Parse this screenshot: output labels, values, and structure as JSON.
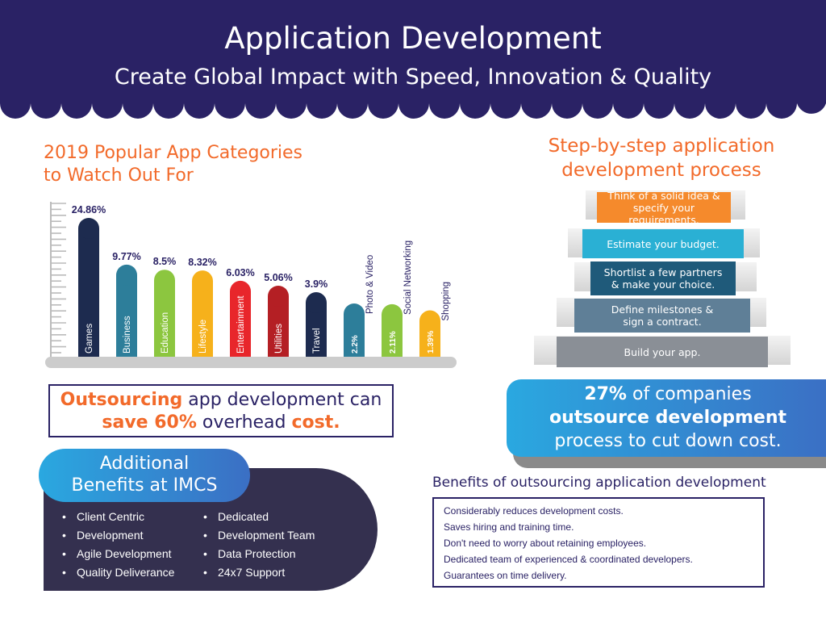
{
  "header": {
    "title": "Application Development",
    "subtitle": "Create Global Impact with Speed, Innovation & Quality",
    "bg_color": "#2a2265"
  },
  "chart_section": {
    "title_line1": "2019 Popular App Categories",
    "title_line2": "to Watch Out For"
  },
  "chart_data": {
    "type": "bar",
    "categories": [
      "Games",
      "Business",
      "Education",
      "Lifestyle",
      "Entertainment",
      "Utilities",
      "Travel",
      "Photo & Video",
      "Social Networking",
      "Shopping"
    ],
    "values": [
      24.86,
      9.77,
      8.5,
      8.32,
      6.03,
      5.06,
      3.9,
      2.2,
      2.11,
      1.39
    ],
    "value_labels": [
      "24.86%",
      "9.77%",
      "8.5%",
      "8.32%",
      "6.03%",
      "5.06%",
      "3.9%",
      "2.2%",
      "2.11%",
      "1.39%"
    ],
    "colors": [
      "#1d2b4f",
      "#2d7e9a",
      "#8cc63f",
      "#f6b11b",
      "#e8262b",
      "#b41f24",
      "#1d2b4f",
      "#2d7e9a",
      "#8cc63f",
      "#f6b11b"
    ],
    "legend": "none",
    "grid": false
  },
  "outsource_box": {
    "part1": "Outsourcing",
    "part2": " app development can",
    "part3": "save 60%",
    "part4": " overhead ",
    "part5": "cost."
  },
  "benefits": {
    "title_line1": "Additional",
    "title_line2": "Benefits at IMCS",
    "left": [
      "Client Centric",
      "Development",
      "Agile Development",
      "Quality Deliverance"
    ],
    "right": [
      "Dedicated",
      "Development Team",
      "Data Protection",
      "24x7 Support"
    ]
  },
  "steps_section": {
    "title_line1": "Step-by-step application",
    "title_line2": "development process",
    "steps": [
      {
        "line1": "Think of a solid idea &",
        "line2": "specify your requirements.",
        "color": "#f58a2c"
      },
      {
        "line1": "Estimate your budget.",
        "line2": "",
        "color": "#2ab0d4"
      },
      {
        "line1": "Shortlist a few partners",
        "line2": "& make your choice.",
        "color": "#1f5a7a"
      },
      {
        "line1": "Define milestones &",
        "line2": "sign a contract.",
        "color": "#5f7f97"
      },
      {
        "line1": "Build your app.",
        "line2": "",
        "color": "#8a8f96"
      }
    ]
  },
  "stat_box": {
    "pct": "27%",
    "line1_rest": " of companies",
    "line2": "outsource development",
    "line3": "process to cut down cost."
  },
  "outsourcing_benefits": {
    "title": "Benefits of outsourcing application development",
    "items": [
      "Considerably reduces development costs.",
      "Saves hiring and training time.",
      "Don't need to worry about retaining employees.",
      "Dedicated team of experienced & coordinated developers.",
      "Guarantees on time delivery."
    ]
  }
}
